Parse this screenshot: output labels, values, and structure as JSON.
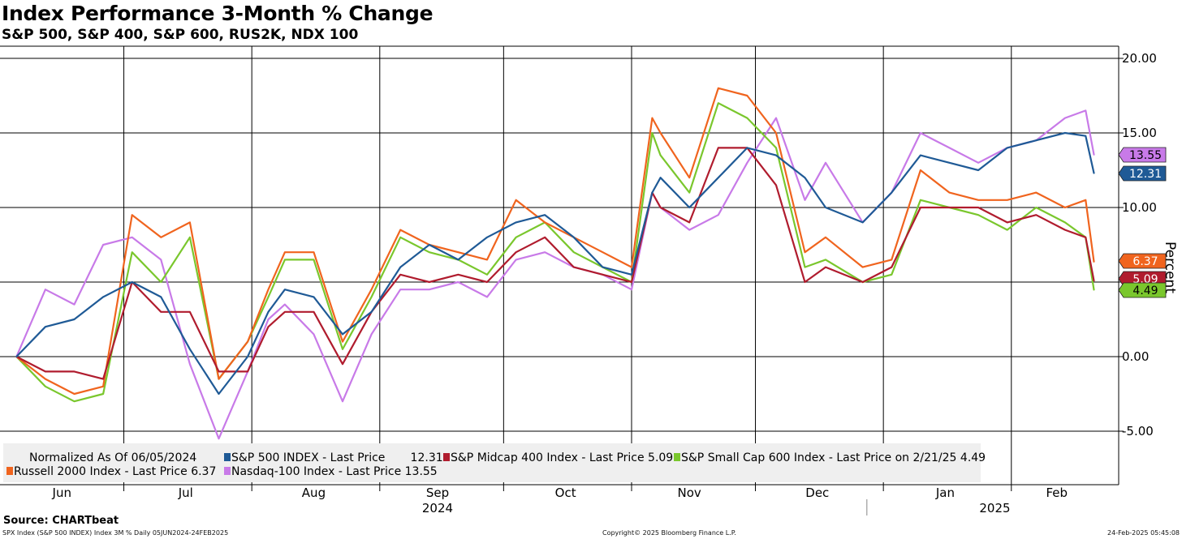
{
  "title": "Index Performance 3-Month % Change",
  "subtitle": "S&P 500, S&P 400, S&P 600, RUS2K, NDX 100",
  "source": "Source: CHARTbeat",
  "footer": {
    "left": "SPX Index (S&P 500 INDEX) Index 3M %   Daily 05JUN2024-24FEB2025",
    "center": "Copyright© 2025 Bloomberg Finance L.P.",
    "right": "24-Feb-2025 05:45:08"
  },
  "colors": {
    "spx": "#1f5a96",
    "mid": "#b01c2e",
    "small": "#7ac72d",
    "russell": "#f0641e",
    "nasdaq": "#c87ae8"
  },
  "chart_data": {
    "type": "line",
    "ylabel": "Percent",
    "ylim": [
      -8,
      21
    ],
    "yticks": [
      "20.00",
      "15.00",
      "10.00",
      "5.00",
      "0.00",
      "-5.00"
    ],
    "grid": true,
    "legend_position": "bottom",
    "legend_header": "Normalized As Of 06/05/2024",
    "months": [
      "Jun",
      "Jul",
      "Aug",
      "Sep",
      "Oct",
      "Nov",
      "Dec",
      "Jan",
      "Feb"
    ],
    "years": [
      "2024",
      "2025"
    ],
    "x": [
      "2024-06-05",
      "2024-06-12",
      "2024-06-19",
      "2024-06-26",
      "2024-07-03",
      "2024-07-10",
      "2024-07-17",
      "2024-07-24",
      "2024-07-31",
      "2024-08-05",
      "2024-08-09",
      "2024-08-16",
      "2024-08-23",
      "2024-08-30",
      "2024-09-06",
      "2024-09-13",
      "2024-09-20",
      "2024-09-27",
      "2024-10-04",
      "2024-10-11",
      "2024-10-18",
      "2024-10-25",
      "2024-11-01",
      "2024-11-06",
      "2024-11-08",
      "2024-11-15",
      "2024-11-22",
      "2024-11-29",
      "2024-12-06",
      "2024-12-13",
      "2024-12-18",
      "2024-12-27",
      "2025-01-03",
      "2025-01-10",
      "2025-01-17",
      "2025-01-24",
      "2025-01-31",
      "2025-02-07",
      "2025-02-14",
      "2025-02-19",
      "2025-02-21"
    ],
    "series": [
      {
        "name": "S&P 500 INDEX - Last Price",
        "key": "spx",
        "last_label": "12.31",
        "legend_text": "S&P 500 INDEX - Last Price       12.31",
        "values": [
          0.0,
          2.0,
          2.5,
          4.0,
          5.0,
          4.0,
          0.5,
          -2.5,
          0.0,
          3.0,
          4.5,
          4.0,
          1.5,
          3.0,
          6.0,
          7.5,
          6.5,
          8.0,
          9.0,
          9.5,
          8.0,
          6.0,
          5.5,
          11.0,
          12.0,
          10.0,
          12.0,
          14.0,
          13.5,
          12.0,
          10.0,
          9.0,
          11.0,
          13.5,
          13.0,
          12.5,
          14.0,
          14.5,
          15.0,
          14.8,
          12.31
        ]
      },
      {
        "name": "S&P Midcap 400 Index - Last Price",
        "key": "mid",
        "last_label": "5.09",
        "legend_text": "S&P Midcap 400 Index - Last Price 5.09",
        "values": [
          0.0,
          -1.0,
          -1.0,
          -1.5,
          5.0,
          3.0,
          3.0,
          -1.0,
          -1.0,
          2.0,
          3.0,
          3.0,
          -0.5,
          3.0,
          5.5,
          5.0,
          5.5,
          5.0,
          7.0,
          8.0,
          6.0,
          5.5,
          5.0,
          11.0,
          10.0,
          9.0,
          14.0,
          14.0,
          11.5,
          5.0,
          6.0,
          5.0,
          6.0,
          10.0,
          10.0,
          10.0,
          9.0,
          9.5,
          8.5,
          8.0,
          5.09
        ]
      },
      {
        "name": "S&P Small Cap 600 Index - Last Price on 2/21/25",
        "key": "small",
        "last_label": "4.49",
        "legend_text": "S&P Small Cap 600 Index - Last Price on 2/21/25 4.49",
        "values": [
          0.0,
          -2.0,
          -3.0,
          -2.5,
          7.0,
          5.0,
          8.0,
          -1.5,
          1.0,
          4.0,
          6.5,
          6.5,
          0.5,
          4.0,
          8.0,
          7.0,
          6.5,
          5.5,
          8.0,
          9.0,
          7.0,
          6.0,
          5.0,
          15.0,
          13.5,
          11.0,
          17.0,
          16.0,
          14.0,
          6.0,
          6.5,
          5.0,
          5.5,
          10.5,
          10.0,
          9.5,
          8.5,
          10.0,
          9.0,
          8.0,
          4.49
        ]
      },
      {
        "name": "Russell 2000 Index - Last Price",
        "key": "russell",
        "last_label": "6.37",
        "legend_text": "Russell 2000 Index - Last Price 6.37",
        "values": [
          0.0,
          -1.5,
          -2.5,
          -2.0,
          9.5,
          8.0,
          9.0,
          -1.5,
          1.0,
          4.5,
          7.0,
          7.0,
          1.0,
          4.5,
          8.5,
          7.5,
          7.0,
          6.5,
          10.5,
          9.0,
          8.0,
          7.0,
          6.0,
          16.0,
          15.0,
          12.0,
          18.0,
          17.5,
          15.0,
          7.0,
          8.0,
          6.0,
          6.5,
          12.5,
          11.0,
          10.5,
          10.5,
          11.0,
          10.0,
          10.5,
          6.37
        ]
      },
      {
        "name": "Nasdaq-100 Index - Last Price",
        "key": "nasdaq",
        "last_label": "13.55",
        "legend_text": "Nasdaq-100 Index - Last Price 13.55",
        "values": [
          0.0,
          4.5,
          3.5,
          7.5,
          8.0,
          6.5,
          -0.5,
          -5.5,
          -1.0,
          2.5,
          3.5,
          1.5,
          -3.0,
          1.5,
          4.5,
          4.5,
          5.0,
          4.0,
          6.5,
          7.0,
          6.0,
          5.5,
          4.5,
          11.0,
          10.0,
          8.5,
          9.5,
          13.0,
          16.0,
          10.5,
          13.0,
          9.0,
          11.0,
          15.0,
          14.0,
          13.0,
          14.0,
          14.5,
          16.0,
          16.5,
          13.55
        ]
      }
    ]
  }
}
